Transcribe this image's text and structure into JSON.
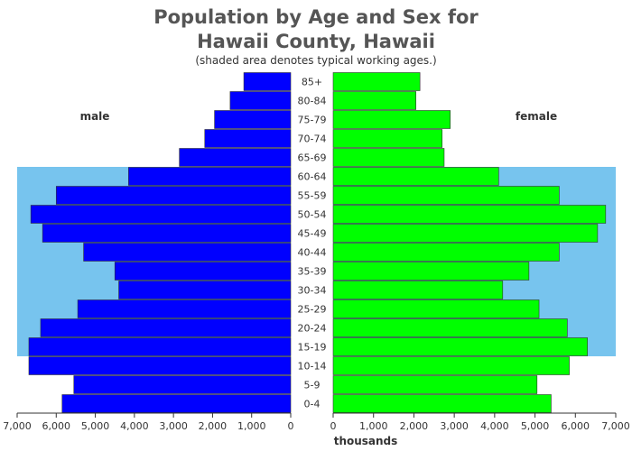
{
  "chart_data": {
    "type": "bar",
    "title_line1": "Population by Age and Sex for",
    "title_line2": "Hawaii County, Hawaii",
    "subtitle": "(shaded area denotes typical working ages.)",
    "xlabel": "thousands",
    "categories": [
      "0-4",
      "5-9",
      "10-14",
      "15-19",
      "20-24",
      "25-29",
      "30-34",
      "35-39",
      "40-44",
      "45-49",
      "50-54",
      "55-59",
      "60-64",
      "65-69",
      "70-74",
      "75-79",
      "80-84",
      "85+"
    ],
    "series": [
      {
        "name": "male",
        "color": "#0000ff",
        "values": [
          5850,
          5550,
          6700,
          6700,
          6400,
          5450,
          4400,
          4500,
          5300,
          6350,
          6650,
          6000,
          4150,
          2850,
          2200,
          1950,
          1550,
          1200
        ]
      },
      {
        "name": "female",
        "color": "#00ff00",
        "values": [
          5400,
          5050,
          5850,
          6300,
          5800,
          5100,
          4200,
          4850,
          5600,
          6550,
          6750,
          5600,
          4100,
          2750,
          2700,
          2900,
          2050,
          2150
        ]
      }
    ],
    "working_age_range": [
      "15-19",
      "60-64"
    ],
    "shade_color": "#77c4ee",
    "xlim": [
      0,
      7000
    ],
    "ticks": [
      0,
      1000,
      2000,
      3000,
      4000,
      5000,
      6000,
      7000
    ],
    "tick_labels_male": [
      "0",
      "1,000",
      "2,000",
      "3,000",
      "4,000",
      "5,000",
      "6,000",
      "7,000"
    ],
    "tick_labels_female": [
      "0",
      "1,000",
      "2,000",
      "3,000",
      "4,000",
      "5,000",
      "6,000",
      "7,000"
    ]
  }
}
